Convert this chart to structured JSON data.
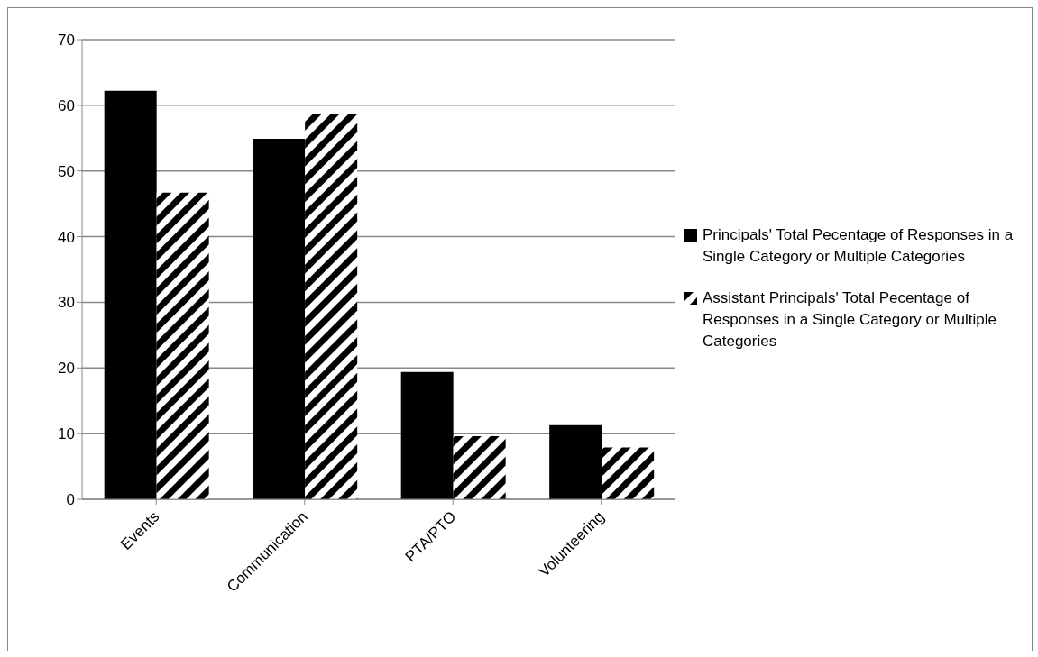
{
  "chart_data": {
    "type": "bar",
    "categories": [
      "Events",
      "Communication",
      "PTA/PTO",
      "Volunteering"
    ],
    "series": [
      {
        "name": "Principals' Total Pecentage of Responses in a Single Category or Multiple Categories",
        "color": "#000000",
        "values": [
          62.2,
          54.9,
          19.4,
          11.3
        ]
      },
      {
        "name": "Assistant Principals' Total Pecentage of Responses in a Single Category or Multiple Categories",
        "color": "#000000",
        "values": [
          46.7,
          58.6,
          9.6,
          7.9
        ]
      }
    ],
    "ylim": [
      0,
      70
    ],
    "yticks": [
      0,
      10,
      20,
      30,
      40,
      50,
      60,
      70
    ],
    "grid": "y",
    "legend": "right"
  }
}
